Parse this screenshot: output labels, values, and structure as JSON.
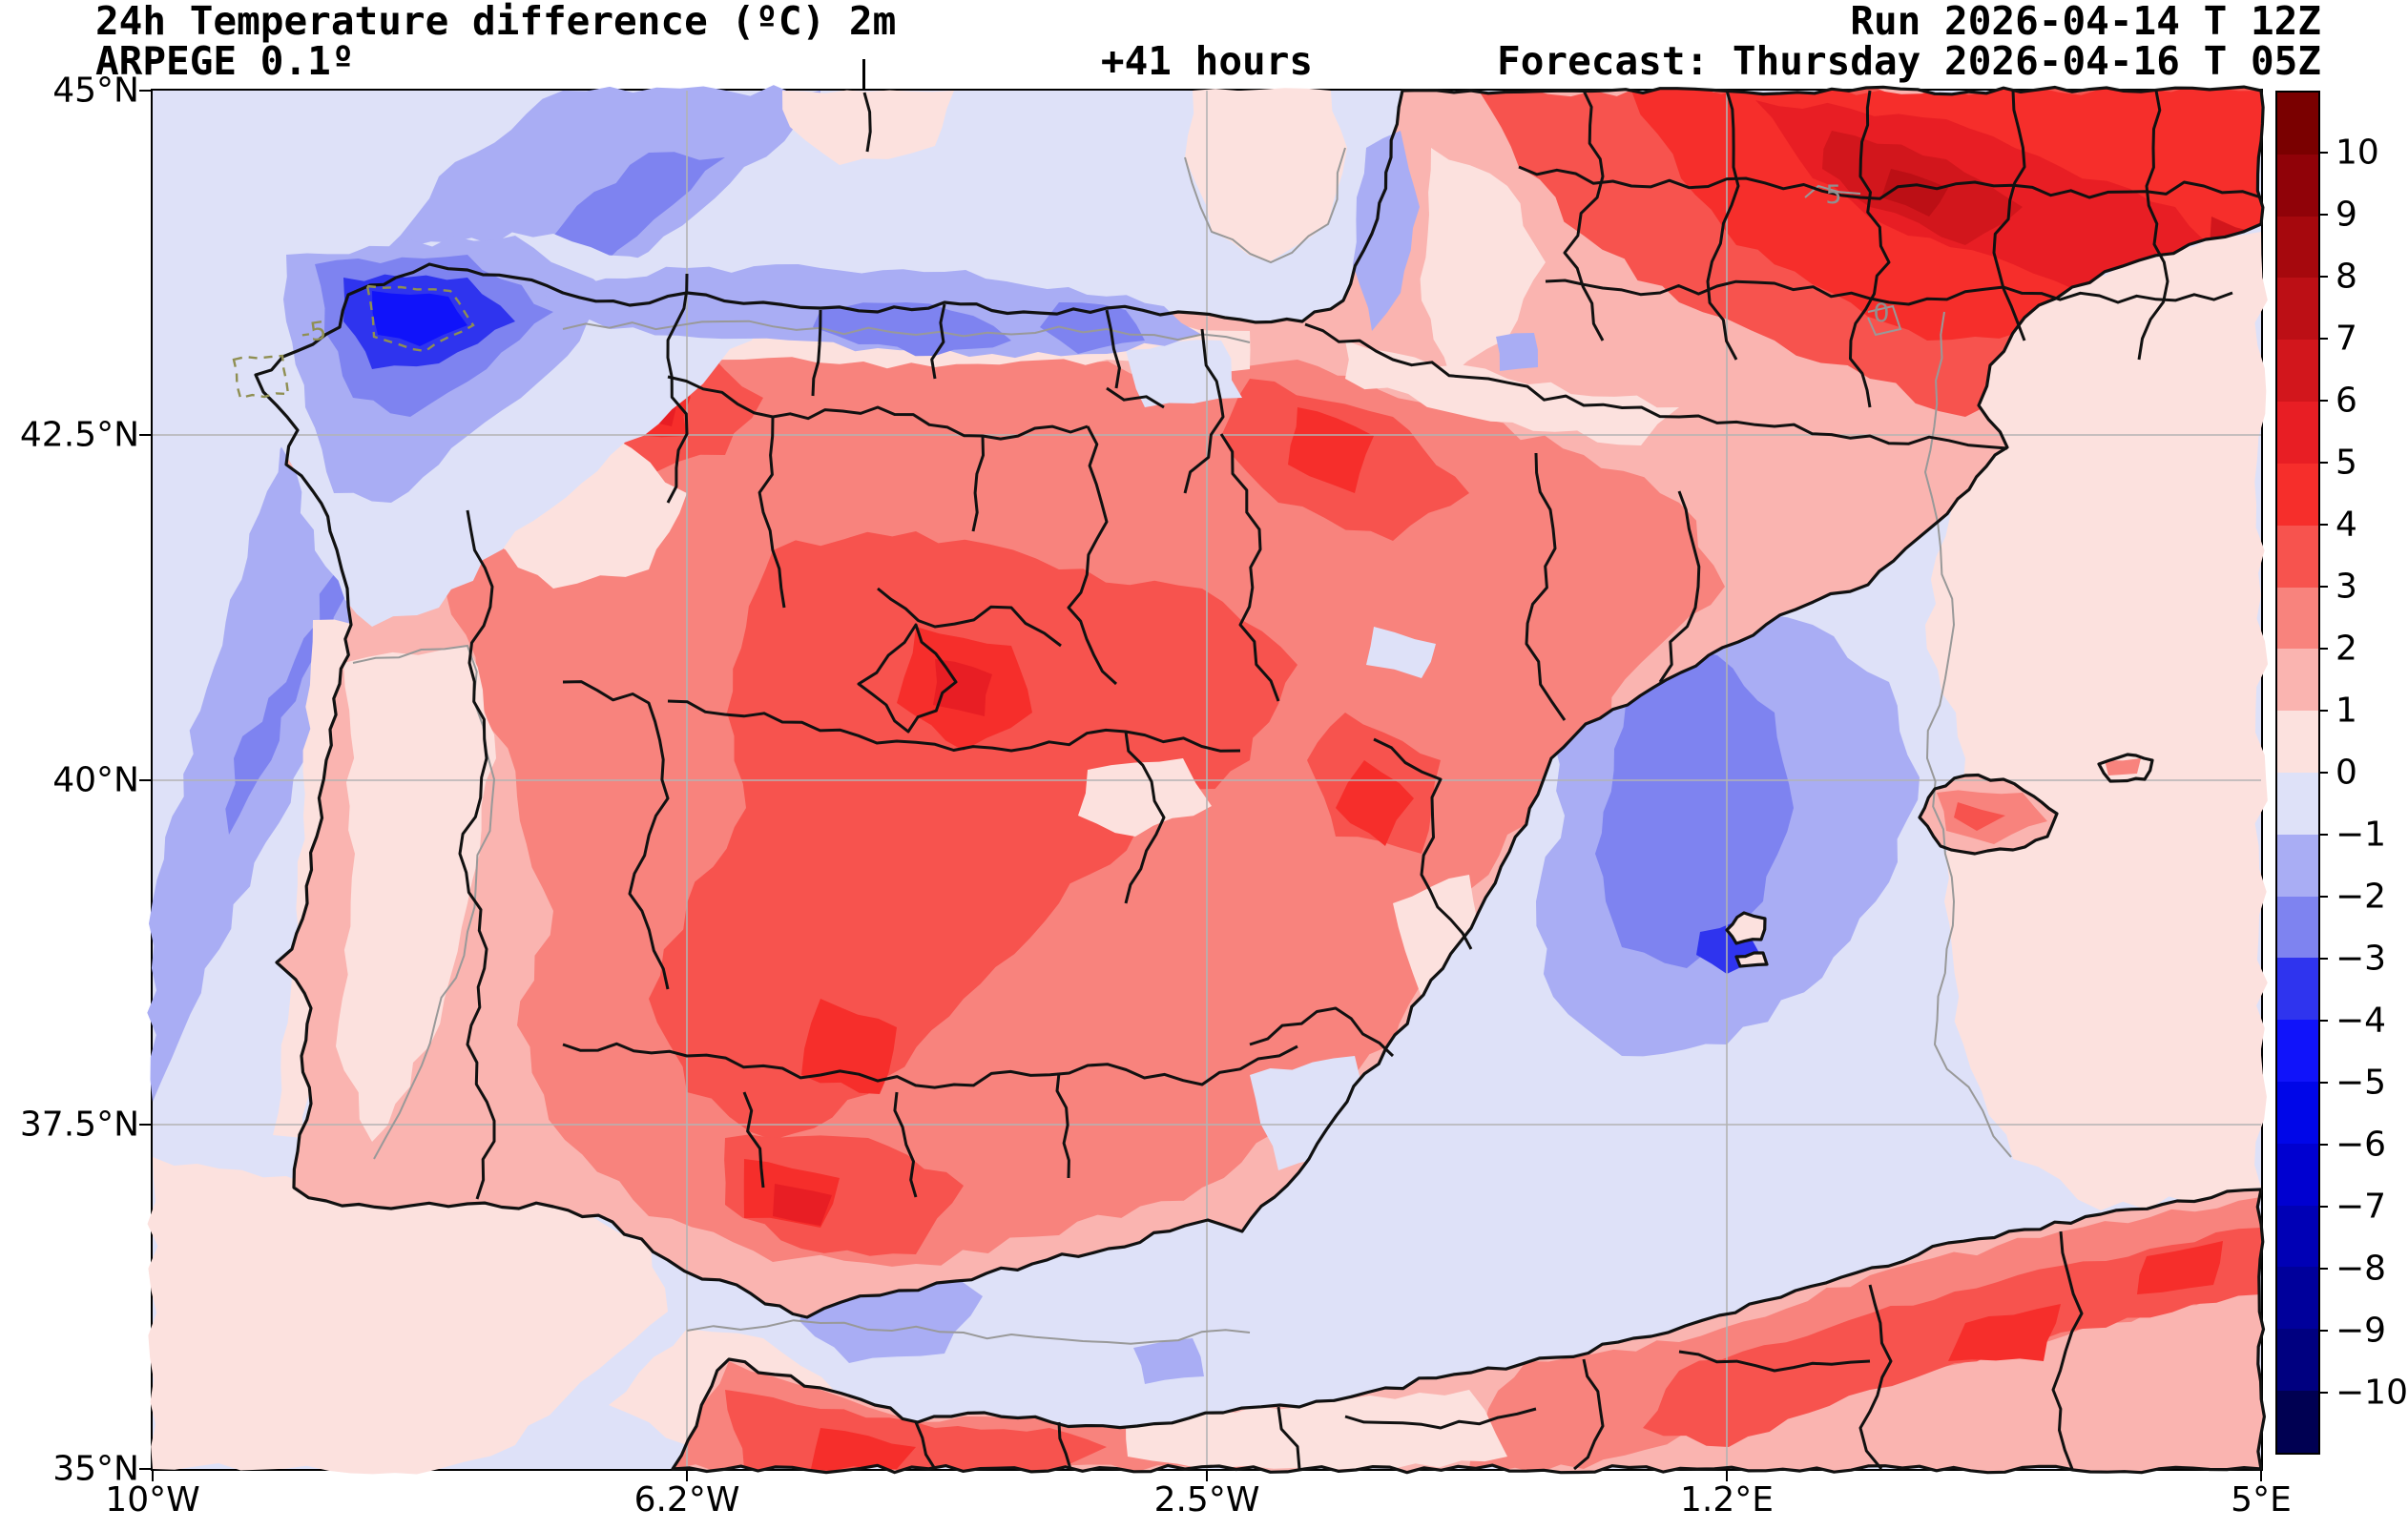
{
  "header": {
    "title": "24h Temperature difference (ºC) 2m",
    "model": "ARPEGE 0.1º",
    "lead_time": "+41 hours",
    "run_line": "Run 2026-04-14 T 12Z",
    "forecast_line": "Forecast: Thursday 2026-04-16 T 05Z"
  },
  "axes": {
    "x_tick_labels": [
      "10°W",
      "6.2°W",
      "2.5°W",
      "1.2°E",
      "5°E"
    ],
    "y_tick_labels": [
      "45°N",
      "42.5°N",
      "40°N",
      "37.5°N",
      "35°N"
    ]
  },
  "colorbar": {
    "tick_labels": [
      "10",
      "9",
      "8",
      "7",
      "6",
      "5",
      "4",
      "3",
      "2",
      "1",
      "0",
      "−1",
      "−2",
      "−3",
      "−4",
      "−5",
      "−6",
      "−7",
      "−8",
      "−9",
      "−10"
    ],
    "segment_colors": [
      "#7a0000",
      "#900208",
      "#a6080d",
      "#bc0f15",
      "#d2161c",
      "#e81e24",
      "#f62e2b",
      "#f7534e",
      "#f8837d",
      "#fab4b0",
      "#fce1de",
      "#dee1f8",
      "#a9adf4",
      "#7e83f0",
      "#2f34ee",
      "#1013fa",
      "#0006e8",
      "#0000d0",
      "#0000b5",
      "#00009b",
      "#000080",
      "#000052"
    ]
  },
  "contour_labels": [
    {
      "text": "-5",
      "color": "#8f8f52"
    },
    {
      "text": "5",
      "color": "#909090"
    },
    {
      "text": "0",
      "color": "#909090"
    }
  ],
  "chart_data": {
    "type": "filled_contour_map",
    "title": "24h Temperature difference (ºC) 2m",
    "model": "ARPEGE 0.1º",
    "lead_time_hours": 41,
    "run": "2026-04-14 12Z",
    "valid": "Thursday 2026-04-16 05Z",
    "region": "Iberian Peninsula, Balearic Islands, southern France, NW Africa",
    "lon_range_deg": [
      -10,
      5
    ],
    "lat_range_deg": [
      35,
      45
    ],
    "contour_levels_degC": [
      -10,
      -9,
      -8,
      -7,
      -6,
      -5,
      -4,
      -3,
      -2,
      -1,
      0,
      1,
      2,
      3,
      4,
      5,
      6,
      7,
      8,
      9,
      10
    ],
    "colormap": "blue-white-red (seismic-like), extended beyond ±10",
    "grid": {
      "lon_gridlines": [
        "6.2°W",
        "2.5°W",
        "1.2°E"
      ],
      "lat_gridlines": [
        "42.5°N",
        "40°N",
        "37.5°N"
      ]
    },
    "labelled_contours_degC": [
      -5,
      0,
      5
    ],
    "notable_values_degC": [
      {
        "area": "NW Galicia coast and nearby Atlantic",
        "value": "-3 to -5 (labelled -5 minimum)"
      },
      {
        "area": "Atlantic band off western Iberia",
        "value": "-1 to -3"
      },
      {
        "area": "Cantabrian coast strip",
        "value": "-1 to -3"
      },
      {
        "area": "Interior Spain (plateaus, Andalusia, Ebro valley)",
        "value": "+2 to +5"
      },
      {
        "area": "Southern France (NE of map)",
        "value": "+4 to +8 (labelled +5 contour)"
      },
      {
        "area": "Mediterranean SE of Valencia towards Balearics",
        "value": "-1 to -4"
      },
      {
        "area": "Balearic Islands",
        "value": "+1 to +3"
      },
      {
        "area": "Alboran Sea / Strait of Gibraltar waters",
        "value": "-1 to +1"
      },
      {
        "area": "Morocco and Algeria",
        "value": "+2 to +5"
      }
    ]
  }
}
